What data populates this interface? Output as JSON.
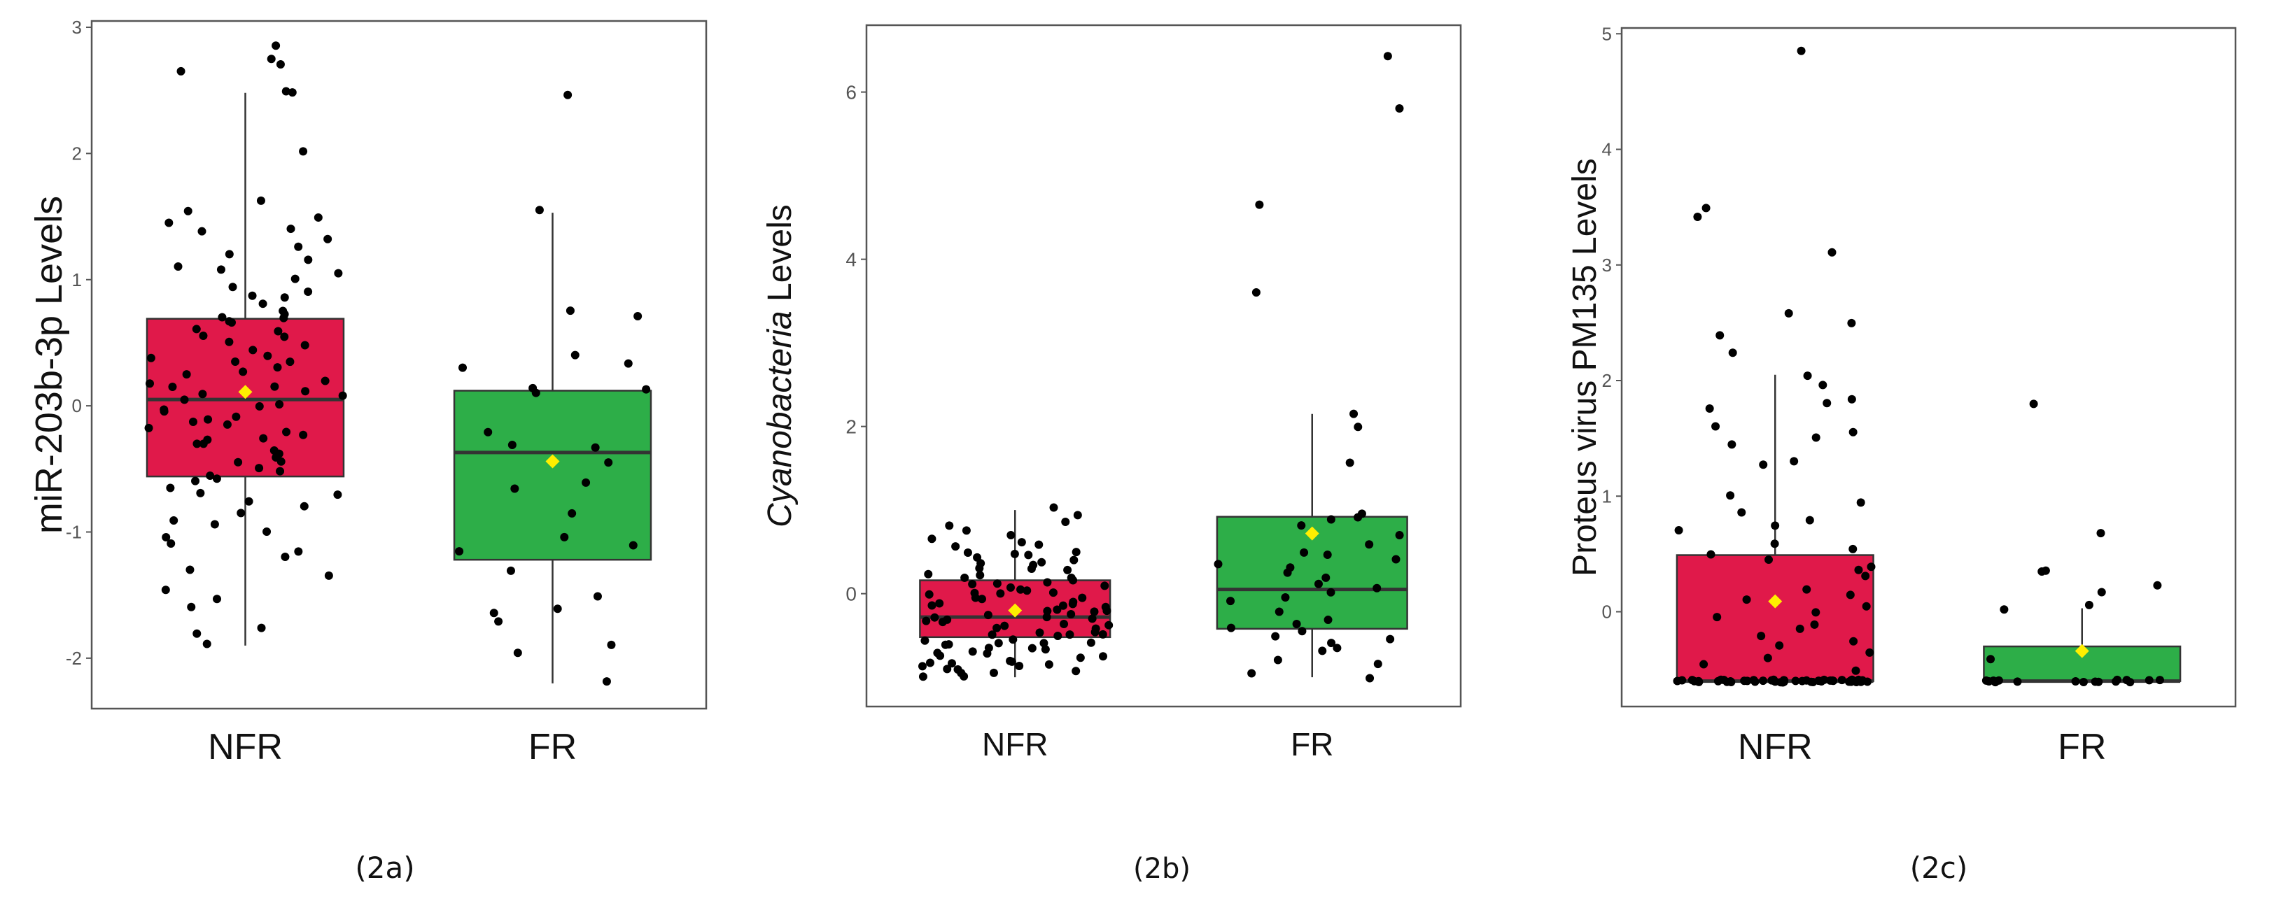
{
  "colors": {
    "nfr_fill": "#E0194A",
    "fr_fill": "#2DAE48",
    "mean_marker": "#FFEF00",
    "points": "#000000",
    "frame": "#555555",
    "box_line": "#333333"
  },
  "chart_data": [
    {
      "type": "boxplot",
      "caption": "(2a)",
      "ylabel": "miR-203b-3p Levels",
      "ylabel_italic_part": "",
      "ylabel_rest": "",
      "ylim": [
        -2.4,
        3.05
      ],
      "yticks": [
        -2,
        -1,
        0,
        1,
        2,
        3
      ],
      "ytick_labels": [
        "-2",
        "-1",
        "0",
        "1",
        "2",
        "3"
      ],
      "categories": [
        "NFR",
        "FR"
      ],
      "groups": [
        {
          "name": "NFR",
          "q1": -0.56,
          "median": 0.05,
          "q3": 0.69,
          "whisker_low": -1.9,
          "whisker_high": 2.48,
          "mean": 0.11,
          "points": [
            2.85,
            2.76,
            2.71,
            2.66,
            2.5,
            2.48,
            2.01,
            1.62,
            1.55,
            1.5,
            1.45,
            1.4,
            1.38,
            1.33,
            1.2,
            1.15,
            1.1,
            1.08,
            1.05,
            1.0,
            0.95,
            0.9,
            0.88,
            0.85,
            0.8,
            0.75,
            0.72,
            0.7,
            0.68,
            0.65,
            0.6,
            0.58,
            0.55,
            0.5,
            0.48,
            0.45,
            0.4,
            0.38,
            0.35,
            0.3,
            0.28,
            0.25,
            0.2,
            0.18,
            0.15,
            0.12,
            0.1,
            0.08,
            0.05,
            0.02,
            0.0,
            -0.02,
            -0.05,
            -0.08,
            -0.1,
            -0.12,
            -0.15,
            -0.18,
            -0.2,
            -0.22,
            -0.25,
            -0.28,
            -0.3,
            -0.35,
            -0.38,
            -0.4,
            -0.45,
            -0.5,
            -0.52,
            -0.55,
            -0.58,
            -0.6,
            -0.65,
            -0.7,
            -0.75,
            -0.8,
            -0.85,
            -0.9,
            -0.95,
            -1.0,
            -1.05,
            -1.1,
            -1.15,
            -1.2,
            -1.3,
            -1.35,
            -1.45,
            -1.52,
            -1.6,
            -1.75,
            -1.8,
            -1.88,
            -0.3,
            0.35,
            0.7,
            -0.7,
            1.25,
            0.15,
            -0.45,
            0.55
          ]
        },
        {
          "name": "FR",
          "q1": -1.22,
          "median": -0.37,
          "q3": 0.12,
          "whisker_low": -2.2,
          "whisker_high": 1.53,
          "mean": -0.44,
          "points": [
            2.46,
            1.55,
            0.75,
            0.72,
            0.4,
            0.33,
            0.3,
            0.15,
            0.12,
            0.1,
            -0.2,
            -0.3,
            -0.32,
            -0.45,
            -0.6,
            -0.65,
            -0.85,
            -1.05,
            -1.1,
            -1.15,
            -1.3,
            -1.5,
            -1.6,
            -1.65,
            -1.7,
            -1.9,
            -1.95,
            -2.18
          ]
        }
      ]
    },
    {
      "type": "boxplot",
      "caption": "(2b)",
      "ylabel": "",
      "ylabel_italic_part": "Cyanobacteria",
      "ylabel_rest": " Levels",
      "ylim": [
        -1.35,
        6.8
      ],
      "yticks": [
        0,
        2,
        4,
        6
      ],
      "ytick_labels": [
        "0",
        "2",
        "4",
        "6"
      ],
      "categories": [
        "NFR",
        "FR"
      ],
      "groups": [
        {
          "name": "NFR",
          "q1": -0.52,
          "median": -0.28,
          "q3": 0.16,
          "whisker_low": -1.0,
          "whisker_high": 1.0,
          "mean": -0.2,
          "points": [
            1.02,
            0.95,
            0.85,
            0.8,
            0.75,
            0.7,
            0.65,
            0.6,
            0.55,
            0.5,
            0.48,
            0.45,
            0.4,
            0.38,
            0.35,
            0.3,
            0.28,
            0.25,
            0.2,
            0.18,
            0.15,
            0.12,
            0.1,
            0.08,
            0.05,
            0.02,
            0.0,
            -0.02,
            -0.05,
            -0.08,
            -0.1,
            -0.12,
            -0.15,
            -0.18,
            -0.2,
            -0.22,
            -0.25,
            -0.28,
            -0.3,
            -0.32,
            -0.35,
            -0.38,
            -0.4,
            -0.42,
            -0.45,
            -0.48,
            -0.5,
            -0.52,
            -0.55,
            -0.58,
            -0.6,
            -0.62,
            -0.65,
            -0.68,
            -0.7,
            -0.72,
            -0.75,
            -0.78,
            -0.8,
            -0.82,
            -0.85,
            -0.88,
            -0.9,
            -0.92,
            -0.95,
            -0.98,
            -1.0,
            0.3,
            0.0,
            -0.3,
            -0.6,
            -0.85,
            0.15,
            -0.15,
            -0.45,
            -0.7,
            0.42,
            -0.25,
            -0.55,
            -0.8,
            0.6,
            0.05,
            -0.35,
            -0.65,
            -0.9,
            0.22,
            -0.1,
            -0.4,
            -0.75,
            -0.95,
            0.5,
            -0.2,
            -0.5,
            0.35,
            -0.05,
            -0.6,
            0.1,
            -0.3,
            -0.85,
            -0.15
          ]
        },
        {
          "name": "FR",
          "q1": -0.42,
          "median": 0.05,
          "q3": 0.92,
          "whisker_low": -1.0,
          "whisker_high": 2.15,
          "mean": 0.72,
          "points": [
            6.42,
            5.8,
            4.65,
            3.6,
            2.15,
            2.0,
            1.58,
            0.95,
            0.9,
            0.88,
            0.8,
            0.7,
            0.6,
            0.5,
            0.45,
            0.4,
            0.35,
            0.3,
            0.25,
            0.2,
            0.1,
            0.05,
            0.0,
            -0.05,
            -0.1,
            -0.2,
            -0.3,
            -0.35,
            -0.4,
            -0.45,
            -0.5,
            -0.55,
            -0.6,
            -0.65,
            -0.7,
            -0.8,
            -0.85,
            -0.95,
            -1.0
          ]
        }
      ]
    },
    {
      "type": "boxplot",
      "caption": "(2c)",
      "ylabel": "Proteus virus PM135 Levels",
      "ylabel_italic_part": "",
      "ylabel_rest": "",
      "ylim": [
        -0.82,
        5.05
      ],
      "yticks": [
        0,
        1,
        2,
        3,
        4,
        5
      ],
      "ytick_labels": [
        "0",
        "1",
        "2",
        "3",
        "4",
        "5"
      ],
      "categories": [
        "NFR",
        "FR"
      ],
      "groups": [
        {
          "name": "NFR",
          "q1": -0.6,
          "median": -0.6,
          "q3": 0.49,
          "whisker_low": -0.6,
          "whisker_high": 2.05,
          "mean": 0.09,
          "points": [
            4.86,
            3.5,
            3.42,
            3.1,
            2.58,
            2.5,
            2.4,
            2.25,
            2.05,
            1.95,
            1.85,
            1.8,
            1.75,
            1.6,
            1.55,
            1.5,
            1.45,
            1.3,
            1.27,
            1.0,
            0.95,
            0.85,
            0.8,
            0.75,
            0.7,
            0.6,
            0.55,
            0.5,
            0.45,
            0.4,
            0.35,
            0.3,
            0.2,
            0.15,
            0.1,
            0.05,
            0.0,
            -0.05,
            -0.1,
            -0.15,
            -0.2,
            -0.25,
            -0.3,
            -0.35,
            -0.4,
            -0.45,
            -0.5,
            -0.6,
            -0.6,
            -0.6,
            -0.6,
            -0.6,
            -0.6,
            -0.6,
            -0.6,
            -0.6,
            -0.6,
            -0.6,
            -0.6,
            -0.6,
            -0.6,
            -0.6,
            -0.6,
            -0.6,
            -0.6,
            -0.6,
            -0.6,
            -0.6,
            -0.6,
            -0.6,
            -0.6,
            -0.6,
            -0.6,
            -0.6,
            -0.6,
            -0.6,
            -0.6,
            -0.6,
            -0.6,
            -0.6,
            -0.6,
            -0.6,
            -0.6,
            -0.6,
            -0.6,
            -0.6,
            -0.6,
            -0.6,
            -0.6,
            -0.6,
            -0.6,
            -0.6,
            -0.6,
            -0.6,
            -0.6
          ]
        },
        {
          "name": "FR",
          "q1": -0.6,
          "median": -0.6,
          "q3": -0.3,
          "whisker_low": -0.6,
          "whisker_high": 0.03,
          "mean": -0.34,
          "points": [
            1.8,
            0.68,
            0.35,
            0.35,
            0.22,
            0.18,
            0.06,
            0.02,
            -0.4,
            -0.6,
            -0.6,
            -0.6,
            -0.6,
            -0.6,
            -0.6,
            -0.6,
            -0.6,
            -0.6,
            -0.6,
            -0.6,
            -0.6,
            -0.6,
            -0.6,
            -0.6,
            -0.6
          ]
        }
      ]
    }
  ]
}
